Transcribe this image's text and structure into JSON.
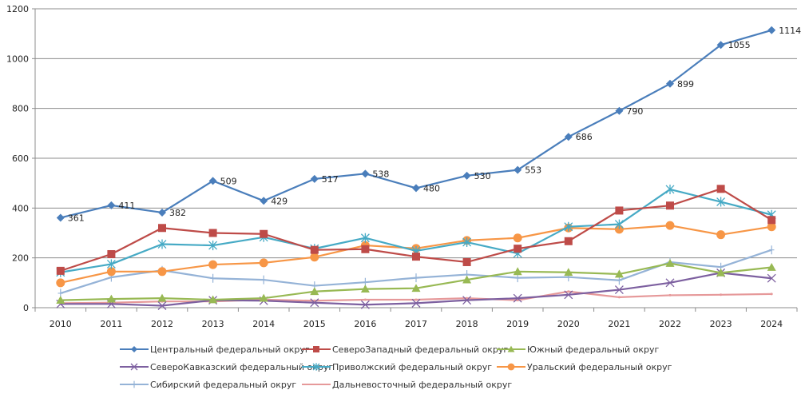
{
  "chart_data": {
    "type": "line",
    "title": "",
    "xlabel": "",
    "ylabel": "",
    "x": [
      "2010",
      "2011",
      "2012",
      "2013",
      "2014",
      "2015",
      "2016",
      "2017",
      "2018",
      "2019",
      "2020",
      "2021",
      "2022",
      "2023",
      "2024"
    ],
    "ylim": [
      0,
      1200
    ],
    "yticks": [
      0,
      200,
      400,
      600,
      800,
      1000,
      1200
    ],
    "grid": "horizontal",
    "legend_position": "bottom",
    "series": [
      {
        "name": "Центральный федеральный округ",
        "color": "#4a7ebb",
        "marker": "diamond",
        "show_labels": true,
        "values": [
          361,
          411,
          382,
          509,
          429,
          517,
          538,
          480,
          530,
          553,
          686,
          790,
          899,
          1055,
          1114
        ]
      },
      {
        "name": "СевероЗападный федеральный округ",
        "color": "#be4b48",
        "marker": "square",
        "show_labels": false,
        "values": [
          148,
          215,
          320,
          300,
          296,
          232,
          235,
          205,
          183,
          237,
          267,
          390,
          410,
          477,
          352
        ]
      },
      {
        "name": "Южный федеральный округ",
        "color": "#98b954",
        "marker": "triangle",
        "show_labels": false,
        "values": [
          30,
          35,
          38,
          32,
          38,
          65,
          75,
          78,
          112,
          145,
          142,
          135,
          178,
          140,
          162
        ]
      },
      {
        "name": "СевероКавказский федеральный округ",
        "color": "#7d60a0",
        "marker": "x",
        "show_labels": false,
        "values": [
          15,
          15,
          8,
          30,
          28,
          20,
          12,
          18,
          30,
          38,
          52,
          72,
          100,
          140,
          118
        ]
      },
      {
        "name": "Приволжский федеральный округ",
        "color": "#46aac5",
        "marker": "star",
        "show_labels": false,
        "values": [
          142,
          175,
          255,
          250,
          283,
          237,
          280,
          228,
          263,
          218,
          325,
          335,
          475,
          425,
          373
        ]
      },
      {
        "name": "Уральский федеральный округ",
        "color": "#f79646",
        "marker": "circle",
        "show_labels": false,
        "values": [
          100,
          145,
          145,
          173,
          180,
          203,
          250,
          238,
          270,
          280,
          320,
          315,
          330,
          293,
          325
        ]
      },
      {
        "name": "Сибирский федеральный округ",
        "color": "#95b3d7",
        "marker": "plus",
        "show_labels": false,
        "values": [
          58,
          122,
          150,
          118,
          112,
          88,
          102,
          120,
          133,
          120,
          123,
          110,
          183,
          163,
          232
        ]
      },
      {
        "name": "Дальневосточный федеральный округ",
        "color": "#e6999a",
        "marker": "none",
        "show_labels": false,
        "values": [
          18,
          20,
          25,
          25,
          32,
          28,
          32,
          32,
          38,
          30,
          65,
          42,
          50,
          52,
          55
        ]
      }
    ]
  }
}
